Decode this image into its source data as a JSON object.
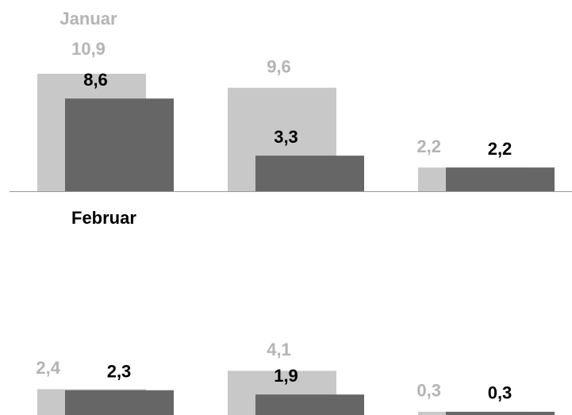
{
  "chart_data": [
    {
      "type": "bar",
      "ylim": [
        0,
        11
      ],
      "series": [
        {
          "name": "Januar",
          "color": "#c8c8c8",
          "label_color": "#b4b4b4",
          "values": [
            10.9,
            9.6,
            2.2
          ],
          "value_labels": [
            "10,9",
            "9,6",
            "2,2"
          ]
        },
        {
          "name": "Februar",
          "color": "#666666",
          "label_color": "#000000",
          "values": [
            8.6,
            3.3,
            2.2
          ],
          "value_labels": [
            "8,6",
            "3,3",
            "2,2"
          ]
        }
      ]
    },
    {
      "type": "bar",
      "ylim": [
        0,
        11
      ],
      "series": [
        {
          "color": "#c8c8c8",
          "label_color": "#b4b4b4",
          "values": [
            2.4,
            4.1,
            0.3
          ],
          "value_labels": [
            "2,4",
            "4,1",
            "0,3"
          ]
        },
        {
          "color": "#666666",
          "label_color": "#000000",
          "values": [
            2.3,
            1.9,
            0.3
          ],
          "value_labels": [
            "2,3",
            "1,9",
            "0,3"
          ]
        }
      ]
    }
  ]
}
